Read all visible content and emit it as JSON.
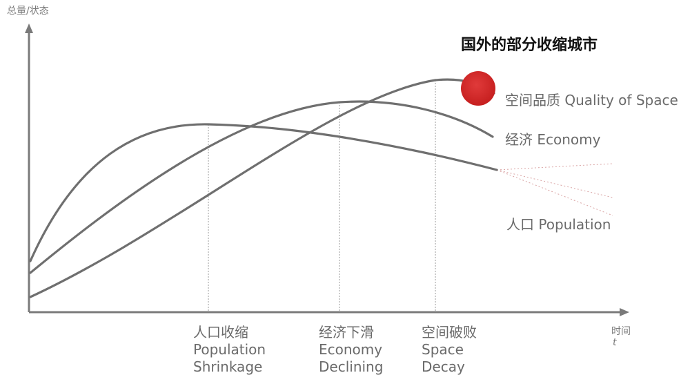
{
  "title": "国外的部分收缩城市",
  "y_axis_label": "总量/状态",
  "x_axis_label_cn": "时间",
  "x_axis_label_symbol": "t",
  "curves": {
    "quality": "空间品质 Quality of Space",
    "economy": "经济 Economy",
    "population": "人口 Population"
  },
  "markers": [
    {
      "cn": "人口收缩",
      "en1": "Population",
      "en2": "Shrinkage"
    },
    {
      "cn": "经济下滑",
      "en1": "Economy",
      "en2": "Declining"
    },
    {
      "cn": "空间破败",
      "en1": "Space",
      "en2": "Decay"
    }
  ],
  "colors": {
    "curve": "#6f6f6f",
    "axis": "#7a7a7a",
    "highlight": "#d32f2f"
  }
}
